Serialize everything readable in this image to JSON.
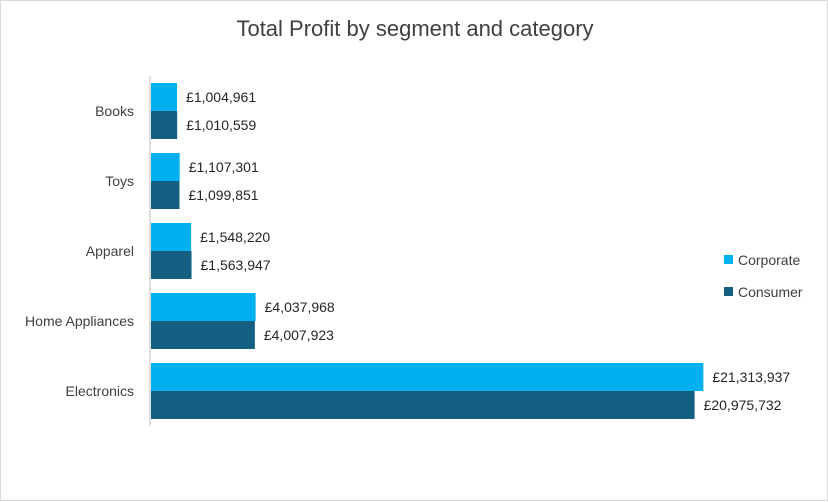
{
  "chart_data": {
    "type": "bar",
    "orientation": "horizontal",
    "title": "Total Profit by segment and category",
    "categories": [
      "Books",
      "Toys",
      "Apparel",
      "Home Appliances",
      "Electronics"
    ],
    "series": [
      {
        "name": "Corporate",
        "color": "#00b0f0",
        "values": [
          1004961,
          1107301,
          1548220,
          4037968,
          21313937
        ],
        "labels": [
          "£1,004,961",
          "£1,107,301",
          "£1,548,220",
          "£4,037,968",
          "£21,313,937"
        ]
      },
      {
        "name": "Consumer",
        "color": "#156082",
        "values": [
          1010559,
          1099851,
          1563947,
          4007923,
          20975732
        ],
        "labels": [
          "£1,010,559",
          "£1,099,851",
          "£1,563,947",
          "£4,007,923",
          "£20,975,732"
        ]
      }
    ],
    "xlim": [
      0,
      23500000
    ],
    "grid": false,
    "legend_position": "right",
    "axis_color": "#bfbfbf"
  }
}
